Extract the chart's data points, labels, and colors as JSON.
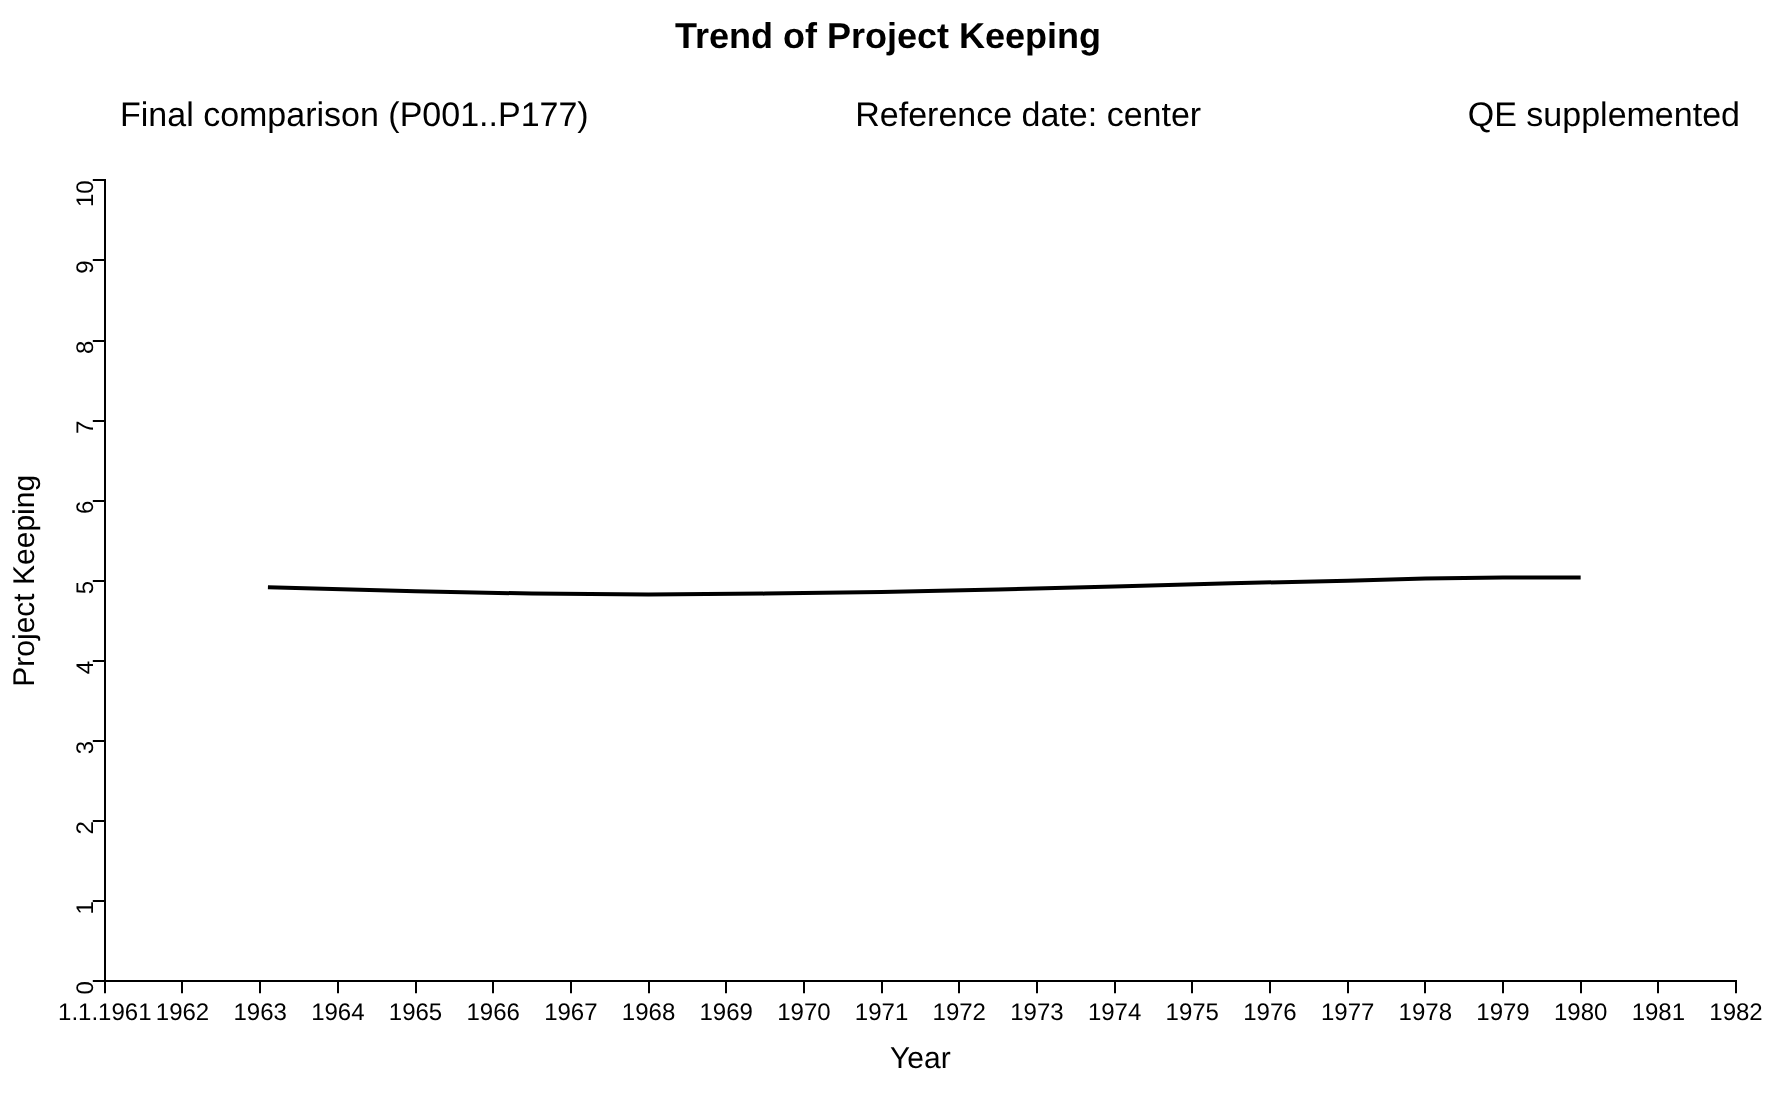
{
  "chart_data": {
    "type": "line",
    "title": "Trend of Project Keeping",
    "annotations": [
      "Final comparison (P001..P177)",
      "Reference date: center",
      "QE supplemented"
    ],
    "xlabel": "Year",
    "ylabel": "Project Keeping",
    "x": [
      1963.1,
      1965,
      1966.5,
      1968,
      1969.5,
      1971,
      1972.5,
      1974,
      1975.5,
      1977,
      1978,
      1979,
      1980
    ],
    "series": [
      {
        "color": "#000000",
        "values": [
          4.92,
          4.87,
          4.84,
          4.83,
          4.84,
          4.86,
          4.89,
          4.93,
          4.97,
          5.0,
          5.03,
          5.04,
          5.04
        ]
      }
    ],
    "xlim": [
      1961,
      1982
    ],
    "xticks": [
      {
        "value": 1961,
        "label": "1.1.1961"
      },
      1962,
      1963,
      1964,
      1965,
      1966,
      1967,
      1968,
      1969,
      1970,
      1971,
      1972,
      1973,
      1974,
      1975,
      1976,
      1977,
      1978,
      1979,
      1980,
      1981,
      1982
    ],
    "ylim": [
      0,
      10
    ],
    "yticks": [
      0,
      1,
      2,
      3,
      4,
      5,
      6,
      7,
      8,
      9,
      10
    ],
    "grid": false,
    "legend": false,
    "marker": "none",
    "line_style": "solid"
  }
}
